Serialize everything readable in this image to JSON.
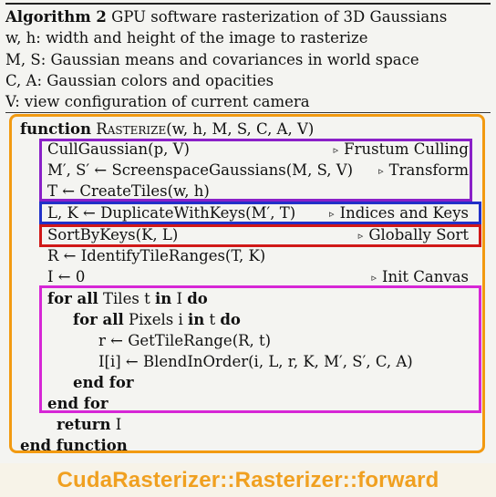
{
  "header": {
    "alg_label": "Algorithm 2",
    "alg_title_rest": " GPU software rasterization of 3D Gaussians",
    "lines": [
      "w, h: width and height of the image to rasterize",
      "M, S: Gaussian means and covariances in world space",
      "C, A: Gaussian colors and opacities",
      "V: view configuration of current camera"
    ]
  },
  "code": {
    "func_kw": "function",
    "func_name": "Rasterize",
    "func_args": "(w, h, M, S, C, A, V)",
    "l1": "CullGaussian(p, V)",
    "c1": "Frustum Culling",
    "l2": "M′, S′ ← ScreenspaceGaussians(M, S, V)",
    "c2": "Transform",
    "l3": "T ← CreateTiles(w, h)",
    "l4": "L, K ← DuplicateWithKeys(M′, T)",
    "c4": "Indices and Keys",
    "l5": "SortByKeys(K, L)",
    "c5": "Globally Sort",
    "l6": "R ← IdentifyTileRanges(T, K)",
    "l7": "I ← 0",
    "c7": "Init Canvas",
    "forall1_kw": "for all",
    "forall1_mid": " Tiles t ",
    "in_kw": "in",
    "forall1_end": " I ",
    "do_kw": "do",
    "forall2_mid": " Pixels i ",
    "forall2_end": " t ",
    "l10": "r ← GetTileRange(R, t)",
    "l11": "I[i] ← BlendInOrder(i, L, r, K, M′, S′, C, A)",
    "endfor": "end for",
    "return_kw": "return",
    "return_val": " I",
    "endfunc": "end function",
    "triangle": "▹"
  },
  "footer": {
    "caption": "CudaRasterizer::Rasterizer::forward"
  },
  "colors": {
    "outer": "#f29a11",
    "purple": "#8a20c8",
    "blue": "#2230c8",
    "red": "#d01818",
    "magenta": "#d626d6",
    "caption": "#f0a020"
  }
}
